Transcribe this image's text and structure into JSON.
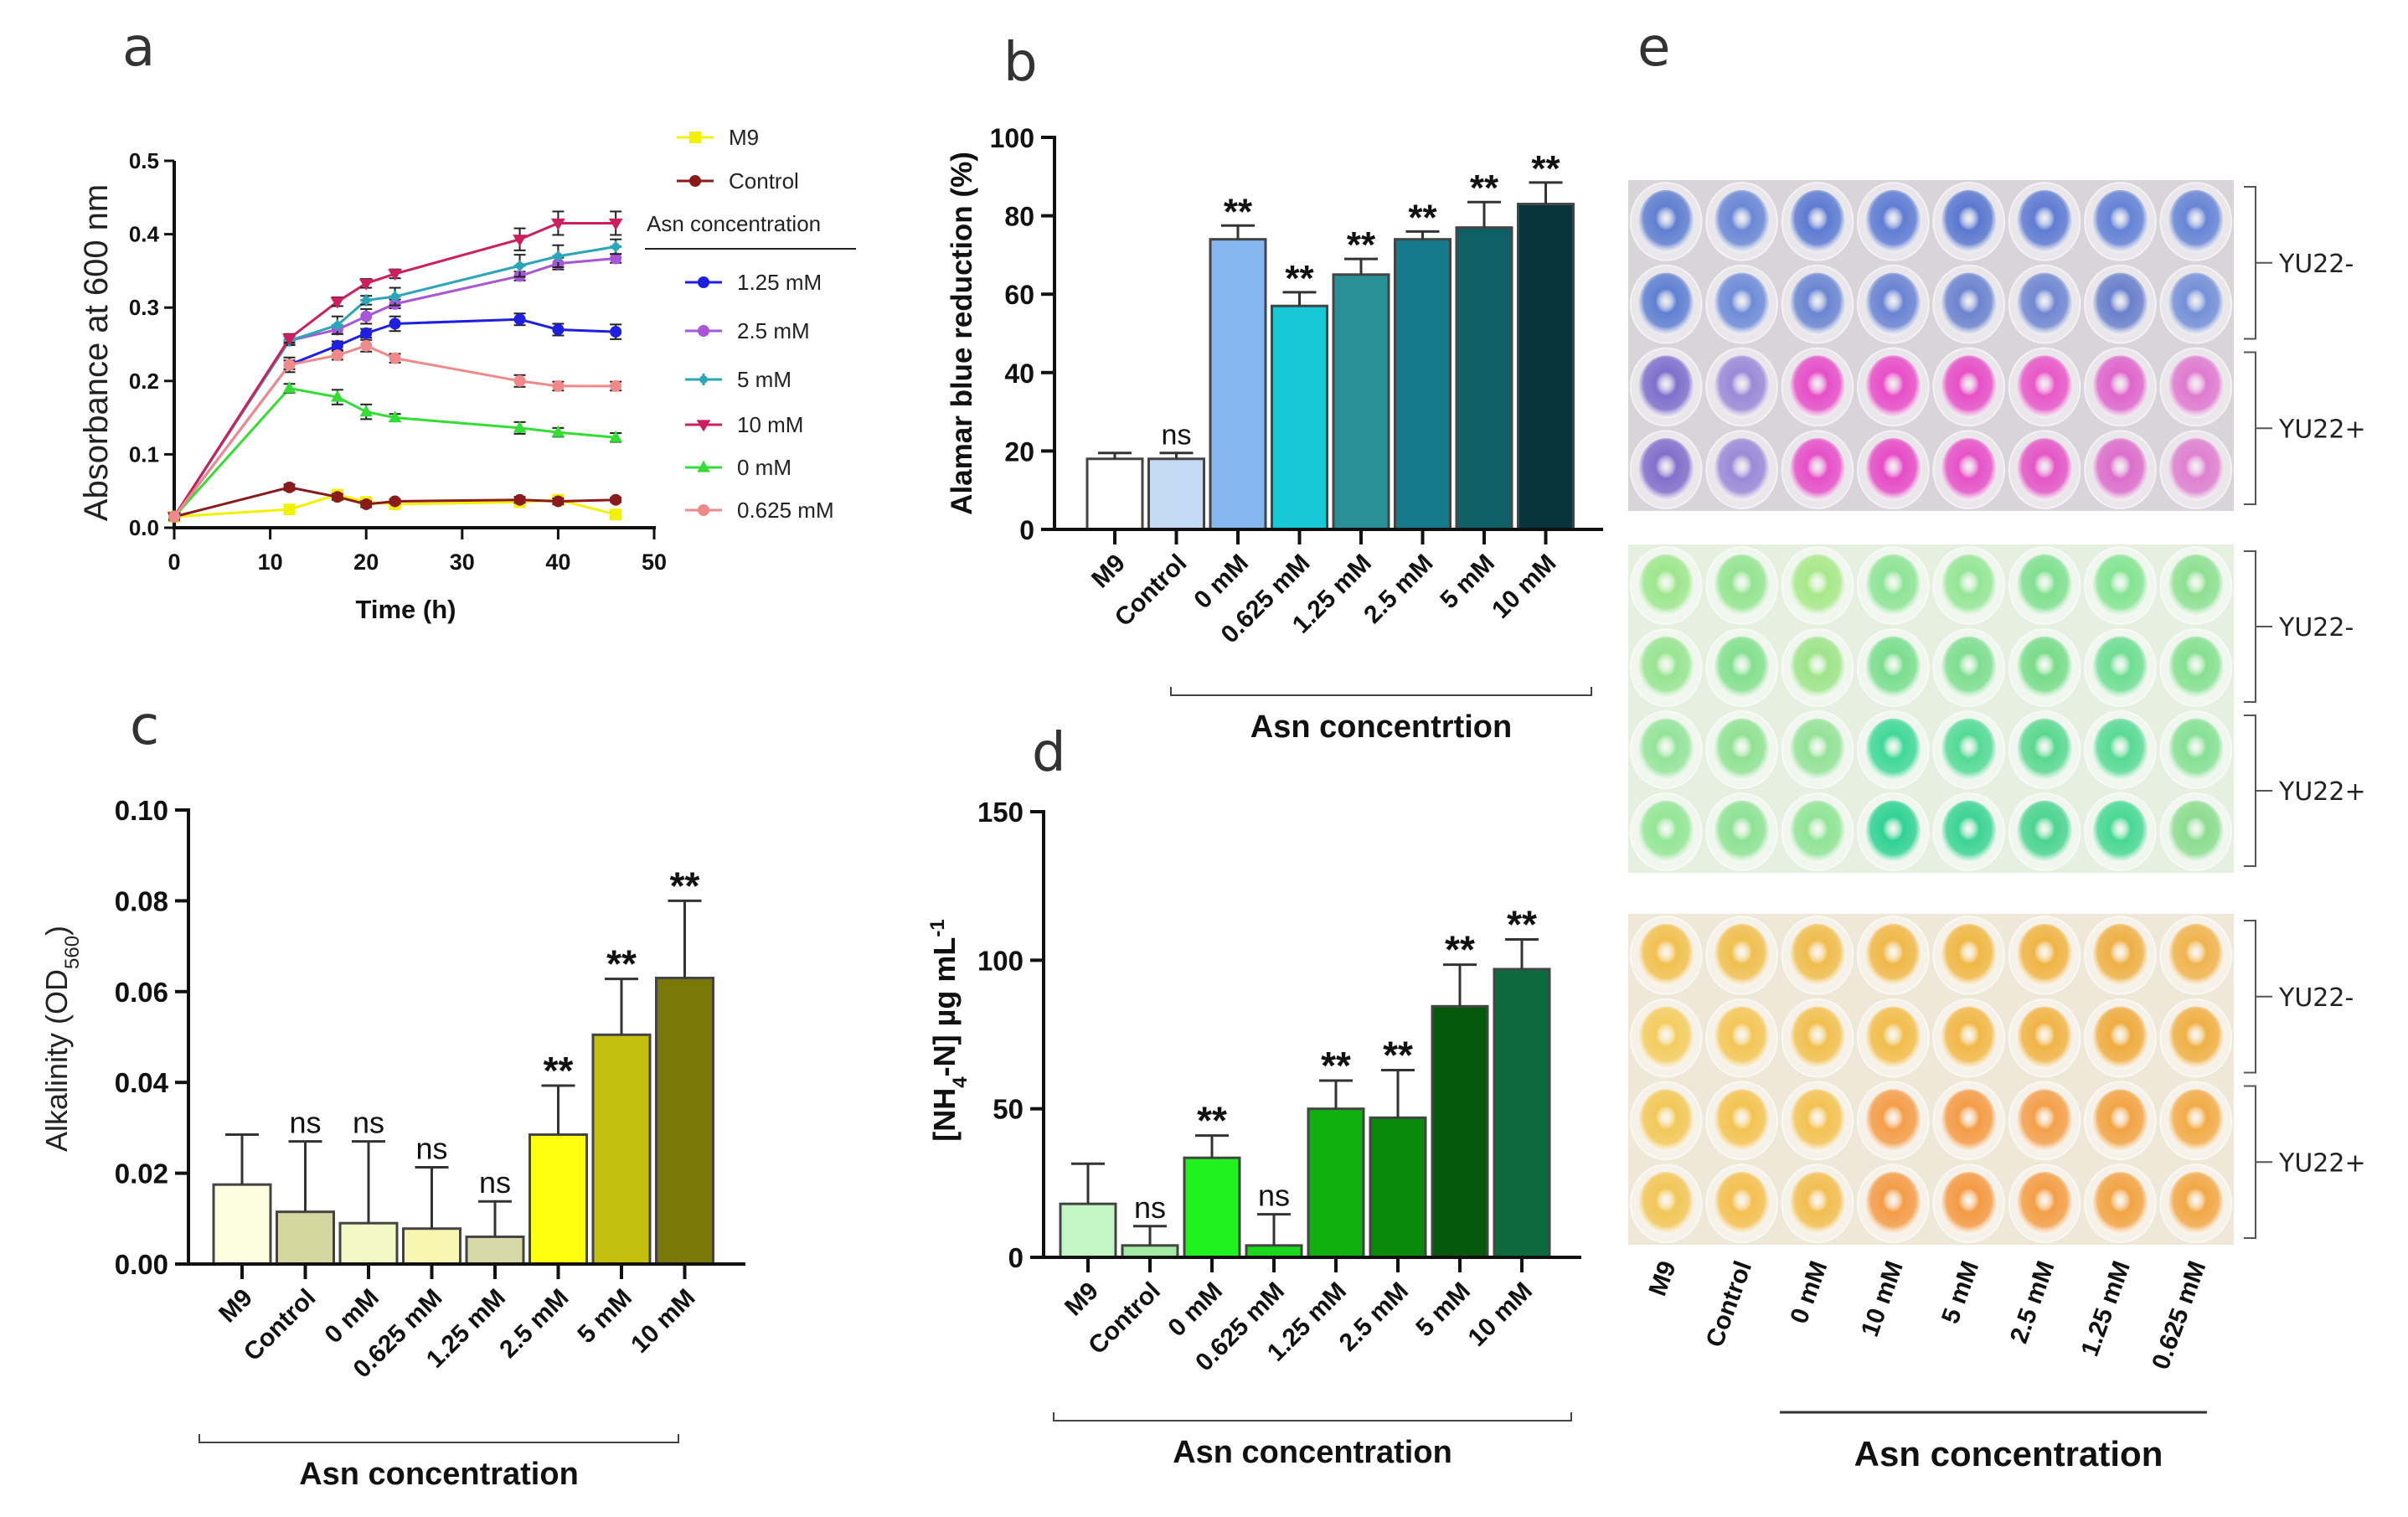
{
  "figure": {
    "panels": [
      "a",
      "b",
      "c",
      "d",
      "e"
    ]
  },
  "chart_data": [
    {
      "id": "a",
      "type": "line",
      "panel_label": "a",
      "title": "",
      "xlabel": "Time (h)",
      "ylabel": "Absorbance at 600 nm",
      "xlim": [
        0,
        50
      ],
      "ylim": [
        0,
        0.5
      ],
      "xticks": [
        "0",
        "10",
        "20",
        "30",
        "40",
        "50"
      ],
      "xtick_values": [
        0,
        10,
        20,
        30,
        40,
        50
      ],
      "yticks": [
        "0.0",
        "0.1",
        "0.2",
        "0.3",
        "0.4",
        "0.5"
      ],
      "ytick_values": [
        0,
        0.1,
        0.2,
        0.3,
        0.4,
        0.5
      ],
      "grid": false,
      "legend_position": "right",
      "legend_group_title": "Asn concentration",
      "x": [
        0,
        12,
        17,
        20,
        23,
        36,
        40,
        46
      ],
      "series": [
        {
          "name": "M9",
          "color": "#f2f200",
          "marker": "square",
          "group": "top",
          "values": [
            0.015,
            0.025,
            0.045,
            0.035,
            0.032,
            0.035,
            0.038,
            0.018
          ],
          "errors": [
            0.004,
            0.004,
            0.004,
            0.003,
            0.003,
            0.004,
            0.004,
            0.004
          ]
        },
        {
          "name": "Control",
          "color": "#8b1a1a",
          "marker": "circle",
          "group": "top",
          "values": [
            0.015,
            0.055,
            0.042,
            0.032,
            0.036,
            0.038,
            0.036,
            0.038
          ],
          "errors": [
            0.003,
            0.004,
            0.004,
            0.004,
            0.003,
            0.004,
            0.004,
            0.003
          ]
        },
        {
          "name": "1.25 mM",
          "color": "#1f1fe0",
          "marker": "circle",
          "group": "asn",
          "values": [
            0.015,
            0.222,
            0.248,
            0.265,
            0.278,
            0.284,
            0.27,
            0.267
          ],
          "errors": [
            0.004,
            0.01,
            0.006,
            0.006,
            0.01,
            0.008,
            0.008,
            0.01
          ]
        },
        {
          "name": "2.5 mM",
          "color": "#a855d8",
          "marker": "circle",
          "group": "asn",
          "values": [
            0.015,
            0.255,
            0.27,
            0.288,
            0.305,
            0.343,
            0.36,
            0.367
          ],
          "errors": [
            0.004,
            0.006,
            0.006,
            0.01,
            0.006,
            0.006,
            0.008,
            0.006
          ]
        },
        {
          "name": "5 mM",
          "color": "#2aa6b8",
          "marker": "plus",
          "group": "asn",
          "values": [
            0.015,
            0.255,
            0.276,
            0.31,
            0.315,
            0.357,
            0.37,
            0.383
          ],
          "errors": [
            0.004,
            0.006,
            0.012,
            0.006,
            0.012,
            0.015,
            0.015,
            0.01
          ]
        },
        {
          "name": "10 mM",
          "color": "#cc1f5c",
          "marker": "triangle-down",
          "group": "asn",
          "values": [
            0.015,
            0.258,
            0.308,
            0.333,
            0.346,
            0.393,
            0.415,
            0.415
          ],
          "errors": [
            0.004,
            0.006,
            0.006,
            0.006,
            0.006,
            0.015,
            0.016,
            0.016
          ]
        },
        {
          "name": "0 mM",
          "color": "#33dd33",
          "marker": "triangle-up",
          "group": "asn",
          "values": [
            0.015,
            0.19,
            0.178,
            0.158,
            0.15,
            0.136,
            0.13,
            0.123
          ],
          "errors": [
            0.004,
            0.006,
            0.01,
            0.01,
            0.005,
            0.008,
            0.006,
            0.006
          ]
        },
        {
          "name": "0.625 mM",
          "color": "#f08a8a",
          "marker": "circle",
          "group": "asn",
          "values": [
            0.015,
            0.222,
            0.235,
            0.248,
            0.231,
            0.2,
            0.193,
            0.193
          ],
          "errors": [
            0.004,
            0.006,
            0.006,
            0.008,
            0.006,
            0.008,
            0.006,
            0.006
          ]
        }
      ]
    },
    {
      "id": "b",
      "type": "bar",
      "panel_label": "b",
      "title": "",
      "ylabel": "Alamar blue reduction (%)",
      "xlabel": "Asn concentrtion",
      "ylim": [
        0,
        100
      ],
      "yticks": [
        "0",
        "20",
        "40",
        "60",
        "80",
        "100"
      ],
      "ytick_values": [
        0,
        20,
        40,
        60,
        80,
        100
      ],
      "grid": false,
      "categories": [
        "M9",
        "Control",
        "0 mM",
        "0.625 mM",
        "1.25 mM",
        "2.5 mM",
        "5 mM",
        "10 mM"
      ],
      "values": [
        18,
        18,
        74,
        57,
        65,
        74,
        77,
        83
      ],
      "errors": [
        1.5,
        1.5,
        3.5,
        3.5,
        4,
        2,
        6.5,
        5.5
      ],
      "significance": [
        "",
        "ns",
        "**",
        "**",
        "**",
        "**",
        "**",
        "**"
      ],
      "colors": [
        "#ffffff",
        "#c5daf5",
        "#86b7f0",
        "#17c9d6",
        "#2a9098",
        "#157a8c",
        "#0e5f66",
        "#07343d"
      ],
      "bracket_from": 2
    },
    {
      "id": "c",
      "type": "bar",
      "panel_label": "c",
      "title": "",
      "ylabel": "Alkalinity (OD",
      "ylabel_sub": "560",
      "ylabel_end": ")",
      "xlabel": "Asn concentration",
      "ylim": [
        0,
        0.1
      ],
      "yticks": [
        "0.00",
        "0.02",
        "0.04",
        "0.06",
        "0.08",
        "0.10"
      ],
      "ytick_values": [
        0,
        0.02,
        0.04,
        0.06,
        0.08,
        0.1
      ],
      "grid": false,
      "categories": [
        "M9",
        "Control",
        "0 mM",
        "0.625 mM",
        "1.25 mM",
        "2.5 mM",
        "5 mM",
        "10 mM"
      ],
      "values": [
        0.0175,
        0.0115,
        0.009,
        0.0078,
        0.006,
        0.0285,
        0.0505,
        0.063
      ],
      "errors": [
        0.011,
        0.0155,
        0.018,
        0.0135,
        0.0078,
        0.0108,
        0.0123,
        0.017
      ],
      "significance": [
        "",
        "ns",
        "ns",
        "ns",
        "ns",
        "**",
        "**",
        "**"
      ],
      "colors": [
        "#fdfde0",
        "#d6d6a0",
        "#f2f8c4",
        "#f8f6b0",
        "#d8d8a8",
        "#ffff10",
        "#c4c010",
        "#7a7806"
      ],
      "bracket_from": 0
    },
    {
      "id": "d",
      "type": "bar",
      "panel_label": "d",
      "title": "",
      "ylabel": "[NH",
      "ylabel_sub": "4",
      "ylabel_mid": "-N] µg mL",
      "ylabel_sup": "-1",
      "xlabel": "Asn concentration",
      "ylim": [
        0,
        150
      ],
      "yticks": [
        "0",
        "50",
        "100",
        "150"
      ],
      "ytick_values": [
        0,
        50,
        100,
        150
      ],
      "grid": false,
      "categories": [
        "M9",
        "Control",
        "0 mM",
        "0.625 mM",
        "1.25 mM",
        "2.5 mM",
        "5 mM",
        "10 mM"
      ],
      "values": [
        18,
        4,
        33.5,
        4,
        50,
        47,
        84.5,
        97
      ],
      "errors": [
        13.5,
        6.5,
        7.5,
        10.5,
        9.5,
        16,
        14,
        10
      ],
      "significance": [
        "",
        "ns",
        "**",
        "ns",
        "**",
        "**",
        "**",
        "**"
      ],
      "colors": [
        "#c4f5c4",
        "#a4e9a4",
        "#1ff21f",
        "#1cd81c",
        "#0fb00f",
        "#0a880a",
        "#045a0a",
        "#0c6a3c"
      ],
      "bracket_from": 0
    },
    {
      "id": "e",
      "type": "table",
      "panel_label": "e",
      "description": "Photographs of 96-well plate wells (3 assays)",
      "column_labels": [
        "M9",
        "Control",
        "0 mM",
        "10 mM",
        "5 mM",
        "2.5 mM",
        "1.25 mM",
        "0.625 mM"
      ],
      "xlabel": "Asn concentration",
      "row_groups": [
        "YU22-",
        "YU22+"
      ],
      "plates": [
        {
          "name": "alamar-blue-plate",
          "background": "#d8d4d8",
          "rows": [
            [
              "#5f7fd0",
              "#6a88d6",
              "#5d7bd2",
              "#5f7dd4",
              "#5a78d0",
              "#5f7cd3",
              "#6482d6",
              "#6785d6"
            ],
            [
              "#5f80d2",
              "#6e8cd8",
              "#6a86d2",
              "#6a84d4",
              "#6c84d0",
              "#7088d2",
              "#6a80cc",
              "#7490d8"
            ],
            [
              "#7e70cc",
              "#9a8ad8",
              "#e64fc8",
              "#e84ec8",
              "#e650c6",
              "#e858c8",
              "#df66cc",
              "#e07ad0"
            ],
            [
              "#8070cc",
              "#9a8ad8",
              "#e650c8",
              "#e64cc6",
              "#e652c8",
              "#e456c6",
              "#dd6ecc",
              "#df80d0"
            ]
          ]
        },
        {
          "name": "ammonia-plate",
          "background": "#e6efe0",
          "rows": [
            [
              "#9ee68e",
              "#94e492",
              "#a8e88a",
              "#8ee496",
              "#94e696",
              "#80e090",
              "#84e492",
              "#8ee092"
            ],
            [
              "#98e492",
              "#84e08e",
              "#9ee48a",
              "#7ade8e",
              "#7ede90",
              "#78dc8a",
              "#6ede92",
              "#86e090"
            ],
            [
              "#94e49a",
              "#90e294",
              "#94e298",
              "#40d898",
              "#54da96",
              "#5ad890",
              "#58da94",
              "#86e094"
            ],
            [
              "#94e696",
              "#8ee294",
              "#90e496",
              "#30d292",
              "#3cd494",
              "#4cd490",
              "#48d894",
              "#8cdc90"
            ]
          ]
        },
        {
          "name": "alkalinity-plate",
          "background": "#efe8d8",
          "rows": [
            [
              "#f2c050",
              "#f0bf50",
              "#f0bd4e",
              "#f0b848",
              "#f0b846",
              "#f0b444",
              "#eeb046",
              "#efb44e"
            ],
            [
              "#f4cc60",
              "#f4c656",
              "#f2c050",
              "#f2be4c",
              "#f2b848",
              "#f0b446",
              "#f0ac40",
              "#f0b046"
            ],
            [
              "#f2c858",
              "#f4c452",
              "#f4c252",
              "#f49e4a",
              "#f49c46",
              "#f4a04a",
              "#f2a444",
              "#f2ac48"
            ],
            [
              "#f2c658",
              "#f4c050",
              "#f2be50",
              "#f49c48",
              "#f49a44",
              "#f49e46",
              "#f2a444",
              "#f2a846"
            ]
          ]
        }
      ]
    }
  ]
}
